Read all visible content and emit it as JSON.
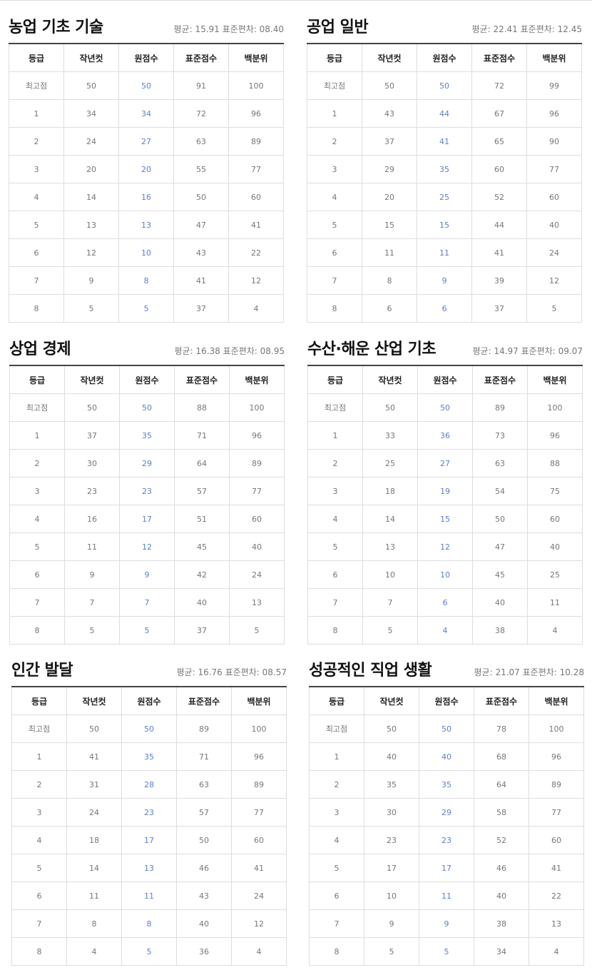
{
  "headers": [
    "등급",
    "작년컷",
    "원점수",
    "표준점수",
    "백분위"
  ],
  "subjects": [
    {
      "title": "농업 기초 기술",
      "stats": "평균: 15.91 표준편차: 08.40",
      "rows": [
        [
          "최고점",
          "50",
          "50",
          "91",
          "100"
        ],
        [
          "1",
          "34",
          "34",
          "72",
          "96"
        ],
        [
          "2",
          "24",
          "27",
          "63",
          "89"
        ],
        [
          "3",
          "20",
          "20",
          "55",
          "77"
        ],
        [
          "4",
          "14",
          "16",
          "50",
          "60"
        ],
        [
          "5",
          "13",
          "13",
          "47",
          "41"
        ],
        [
          "6",
          "12",
          "10",
          "43",
          "22"
        ],
        [
          "7",
          "9",
          "8",
          "41",
          "12"
        ],
        [
          "8",
          "5",
          "5",
          "37",
          "4"
        ]
      ]
    },
    {
      "title": "공업 일반",
      "stats": "평균: 22.41 표준편차: 12.45",
      "rows": [
        [
          "최고점",
          "50",
          "50",
          "72",
          "99"
        ],
        [
          "1",
          "43",
          "44",
          "67",
          "96"
        ],
        [
          "2",
          "37",
          "41",
          "65",
          "90"
        ],
        [
          "3",
          "29",
          "35",
          "60",
          "77"
        ],
        [
          "4",
          "20",
          "25",
          "52",
          "60"
        ],
        [
          "5",
          "15",
          "15",
          "44",
          "40"
        ],
        [
          "6",
          "11",
          "11",
          "41",
          "24"
        ],
        [
          "7",
          "8",
          "9",
          "39",
          "12"
        ],
        [
          "8",
          "6",
          "6",
          "37",
          "5"
        ]
      ]
    },
    {
      "title": "상업 경제",
      "stats": "평균: 16.38 표준편차: 08.95",
      "rows": [
        [
          "최고점",
          "50",
          "50",
          "88",
          "100"
        ],
        [
          "1",
          "37",
          "35",
          "71",
          "96"
        ],
        [
          "2",
          "30",
          "29",
          "64",
          "89"
        ],
        [
          "3",
          "23",
          "23",
          "57",
          "77"
        ],
        [
          "4",
          "16",
          "17",
          "51",
          "60"
        ],
        [
          "5",
          "11",
          "12",
          "45",
          "40"
        ],
        [
          "6",
          "9",
          "9",
          "42",
          "24"
        ],
        [
          "7",
          "7",
          "7",
          "40",
          "13"
        ],
        [
          "8",
          "5",
          "5",
          "37",
          "5"
        ]
      ]
    },
    {
      "title": "수산·해운 산업 기초",
      "stats": "평균: 14.97 표준편차: 09.07",
      "rows": [
        [
          "최고점",
          "50",
          "50",
          "89",
          "100"
        ],
        [
          "1",
          "33",
          "36",
          "73",
          "96"
        ],
        [
          "2",
          "25",
          "27",
          "63",
          "88"
        ],
        [
          "3",
          "18",
          "19",
          "54",
          "75"
        ],
        [
          "4",
          "14",
          "15",
          "50",
          "60"
        ],
        [
          "5",
          "13",
          "12",
          "47",
          "40"
        ],
        [
          "6",
          "10",
          "10",
          "45",
          "25"
        ],
        [
          "7",
          "7",
          "6",
          "40",
          "11"
        ],
        [
          "8",
          "5",
          "4",
          "38",
          "4"
        ]
      ]
    },
    {
      "title": "인간 발달",
      "stats": "평균: 16.76 표준편차: 08.57",
      "rows": [
        [
          "최고점",
          "50",
          "50",
          "89",
          "100"
        ],
        [
          "1",
          "41",
          "35",
          "71",
          "96"
        ],
        [
          "2",
          "31",
          "28",
          "63",
          "89"
        ],
        [
          "3",
          "24",
          "23",
          "57",
          "77"
        ],
        [
          "4",
          "18",
          "17",
          "50",
          "60"
        ],
        [
          "5",
          "14",
          "13",
          "46",
          "41"
        ],
        [
          "6",
          "11",
          "11",
          "43",
          "24"
        ],
        [
          "7",
          "8",
          "8",
          "40",
          "12"
        ],
        [
          "8",
          "4",
          "5",
          "36",
          "4"
        ]
      ]
    },
    {
      "title": "성공적인 직업 생활",
      "stats": "평균: 21.07 표준편차: 10.28",
      "rows": [
        [
          "최고점",
          "50",
          "50",
          "78",
          "100"
        ],
        [
          "1",
          "40",
          "40",
          "68",
          "96"
        ],
        [
          "2",
          "35",
          "35",
          "64",
          "89"
        ],
        [
          "3",
          "30",
          "29",
          "58",
          "77"
        ],
        [
          "4",
          "23",
          "23",
          "52",
          "60"
        ],
        [
          "5",
          "17",
          "17",
          "46",
          "41"
        ],
        [
          "6",
          "10",
          "11",
          "40",
          "22"
        ],
        [
          "7",
          "9",
          "9",
          "38",
          "13"
        ],
        [
          "8",
          "5",
          "5",
          "34",
          "4"
        ]
      ]
    }
  ]
}
